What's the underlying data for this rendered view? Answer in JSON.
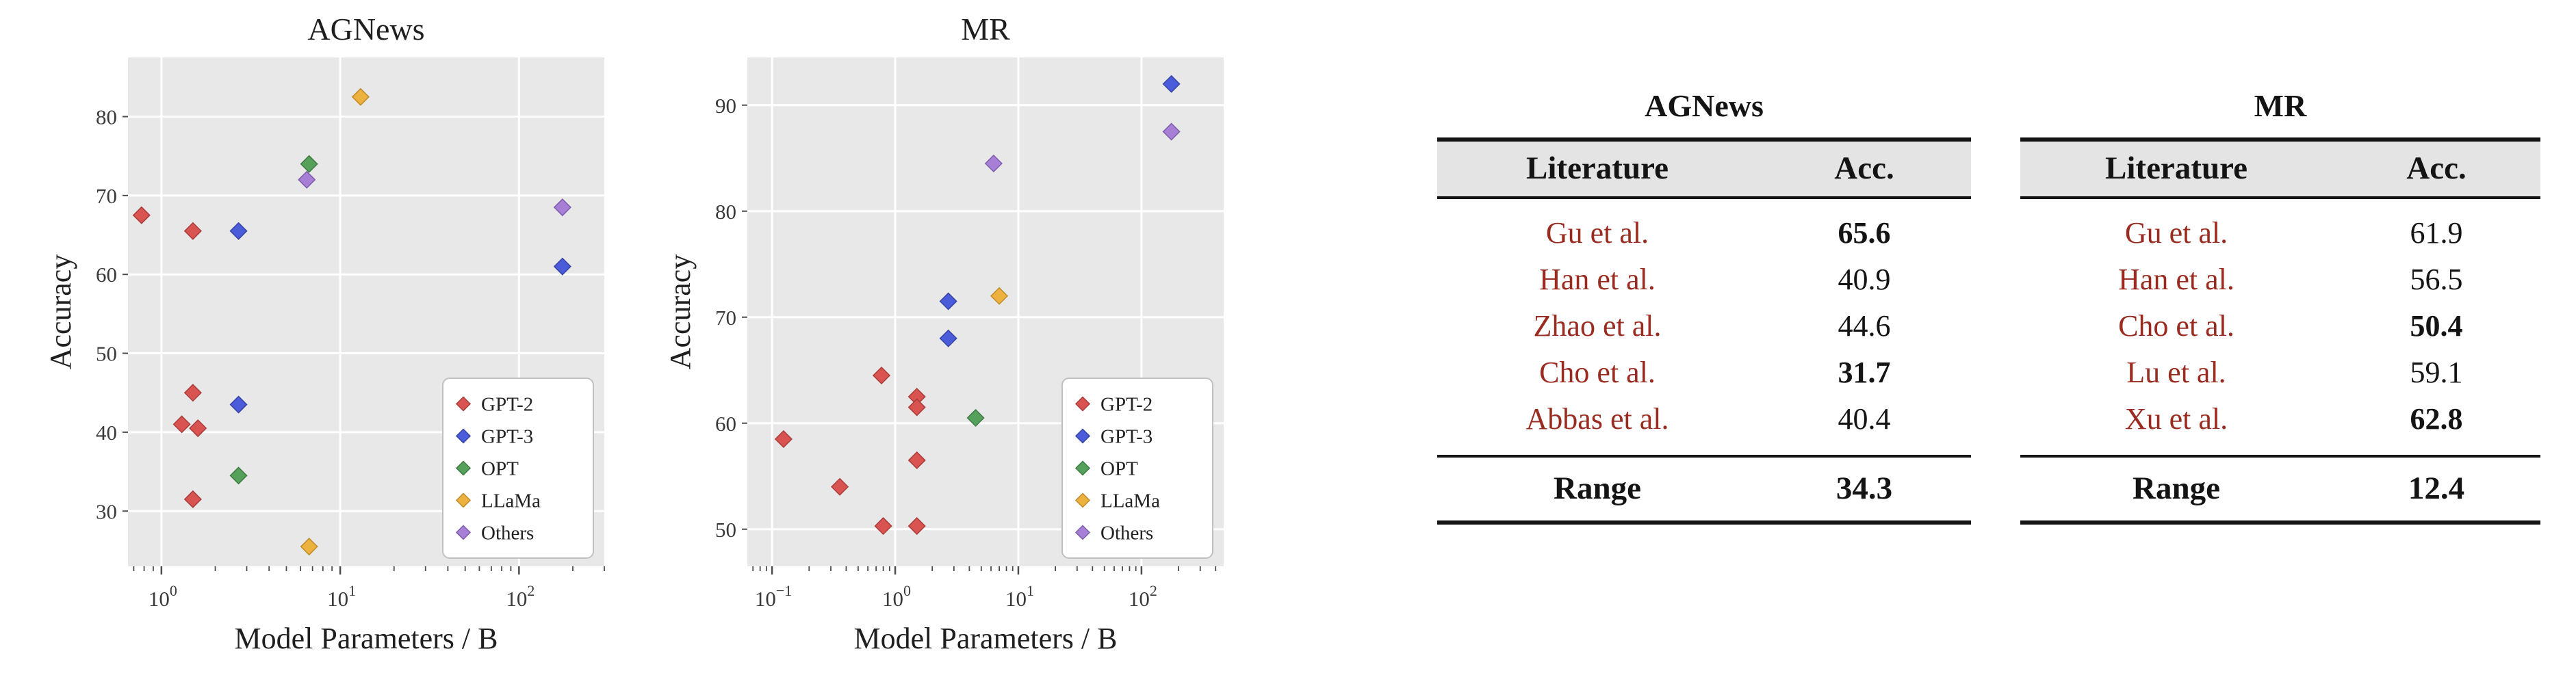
{
  "figure": {
    "description": "Model accuracy on AGNews and MR versus model parameters, with literature-reported accuracies",
    "accent_colors": {
      "literature_text": "#9a2b20",
      "table_header_bg": "#e4e4e4",
      "plot_bg": "#e8e8e8",
      "rule_color": "#141414"
    }
  },
  "chart_data": [
    {
      "type": "scatter",
      "title": "AGNews",
      "xlabel": "Model Parameters / B",
      "ylabel": "Accuracy",
      "xscale": "log",
      "xlim": [
        0.65,
        300
      ],
      "ylim": [
        23,
        87.5
      ],
      "yticks": [
        30,
        40,
        50,
        60,
        70,
        80
      ],
      "xticks": [
        {
          "value": 1,
          "exp": "0"
        },
        {
          "value": 10,
          "exp": "1"
        },
        {
          "value": 100,
          "exp": "2"
        }
      ],
      "legend_position": "lower-right",
      "grid": true,
      "series": [
        {
          "name": "GPT-2",
          "color": "#d95350",
          "edge": "#a83c3a",
          "points": [
            [
              0.774,
              67.5
            ],
            [
              1.5,
              65.5
            ],
            [
              1.5,
              45
            ],
            [
              1.3,
              41
            ],
            [
              1.6,
              40.5
            ],
            [
              1.5,
              31.5
            ]
          ]
        },
        {
          "name": "GPT-3",
          "color": "#4a5cd9",
          "edge": "#3643a5",
          "points": [
            [
              2.7,
              65.5
            ],
            [
              2.7,
              43.5
            ],
            [
              175,
              61
            ]
          ]
        },
        {
          "name": "OPT",
          "color": "#55a05a",
          "edge": "#3d7a42",
          "points": [
            [
              6.7,
              74
            ],
            [
              2.7,
              34.5
            ]
          ]
        },
        {
          "name": "LLaMa",
          "color": "#edb13f",
          "edge": "#bf8b28",
          "points": [
            [
              13,
              82.5
            ],
            [
              6.7,
              25.5
            ]
          ]
        },
        {
          "name": "Others",
          "color": "#a87fd6",
          "edge": "#7d5cab",
          "points": [
            [
              6.5,
              72
            ],
            [
              175,
              68.5
            ]
          ]
        }
      ]
    },
    {
      "type": "scatter",
      "title": "MR",
      "xlabel": "Model Parameters / B",
      "ylabel": "Accuracy",
      "xscale": "log",
      "xlim": [
        0.063,
        465
      ],
      "ylim": [
        46.5,
        94.5
      ],
      "yticks": [
        50,
        60,
        70,
        80,
        90
      ],
      "xticks": [
        {
          "value": 0.1,
          "exp": "−1"
        },
        {
          "value": 1,
          "exp": "0"
        },
        {
          "value": 10,
          "exp": "1"
        },
        {
          "value": 100,
          "exp": "2"
        }
      ],
      "legend_position": "lower-right",
      "grid": true,
      "series": [
        {
          "name": "GPT-2",
          "color": "#d95350",
          "edge": "#a83c3a",
          "points": [
            [
              0.124,
              58.5
            ],
            [
              0.355,
              54
            ],
            [
              0.774,
              64.5
            ],
            [
              0.8,
              50.3
            ],
            [
              1.5,
              62.5
            ],
            [
              1.5,
              61.5
            ],
            [
              1.5,
              56.5
            ],
            [
              1.5,
              50.3
            ]
          ]
        },
        {
          "name": "GPT-3",
          "color": "#4a5cd9",
          "edge": "#3643a5",
          "points": [
            [
              2.7,
              71.5
            ],
            [
              2.7,
              68
            ],
            [
              175,
              92
            ]
          ]
        },
        {
          "name": "OPT",
          "color": "#55a05a",
          "edge": "#3d7a42",
          "points": [
            [
              4.5,
              60.5
            ]
          ]
        },
        {
          "name": "LLaMa",
          "color": "#edb13f",
          "edge": "#bf8b28",
          "points": [
            [
              7,
              72
            ]
          ]
        },
        {
          "name": "Others",
          "color": "#a87fd6",
          "edge": "#7d5cab",
          "points": [
            [
              6.3,
              84.5
            ],
            [
              175,
              87.5
            ]
          ]
        }
      ]
    },
    {
      "type": "table",
      "title": "AGNews",
      "columns": [
        "Literature",
        "Acc."
      ],
      "rows": [
        {
          "literature": "Gu et al.",
          "acc": "65.6",
          "bold": true
        },
        {
          "literature": "Han et al.",
          "acc": "40.9",
          "bold": false
        },
        {
          "literature": "Zhao et al.",
          "acc": "44.6",
          "bold": false
        },
        {
          "literature": "Cho et al.",
          "acc": "31.7",
          "bold": true
        },
        {
          "literature": "Abbas et al.",
          "acc": "40.4",
          "bold": false
        }
      ],
      "footer": {
        "label": "Range",
        "value": "34.3"
      }
    },
    {
      "type": "table",
      "title": "MR",
      "columns": [
        "Literature",
        "Acc."
      ],
      "rows": [
        {
          "literature": "Gu et al.",
          "acc": "61.9",
          "bold": false
        },
        {
          "literature": "Han et al.",
          "acc": "56.5",
          "bold": false
        },
        {
          "literature": "Cho et al.",
          "acc": "50.4",
          "bold": true
        },
        {
          "literature": "Lu et al.",
          "acc": "59.1",
          "bold": false
        },
        {
          "literature": "Xu et al.",
          "acc": "62.8",
          "bold": true
        }
      ],
      "footer": {
        "label": "Range",
        "value": "12.4"
      }
    }
  ]
}
